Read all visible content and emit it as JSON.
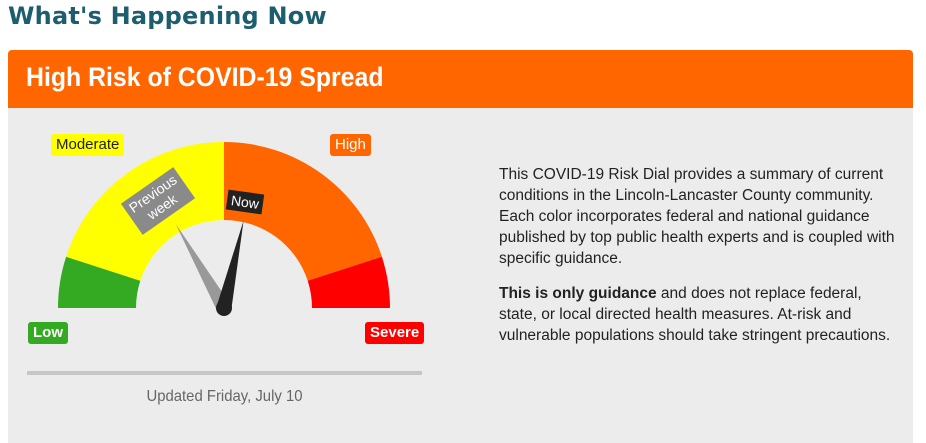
{
  "page": {
    "heading": "What's Happening Now"
  },
  "card": {
    "title": "High Risk of COVID-19 Spread"
  },
  "dial": {
    "levels": {
      "low": "Low",
      "moderate": "Moderate",
      "high": "High",
      "severe": "Severe"
    },
    "colors": {
      "low": "#33aa22",
      "moderate": "#ffff00",
      "high": "#ff6600",
      "severe": "#ff0000",
      "now_needle": "#222222",
      "previous_needle": "#999999"
    },
    "needles": {
      "previous_label_line1": "Previous",
      "previous_label_line2": "week",
      "now_label": "Now"
    },
    "updated_text": "Updated Friday, July 10"
  },
  "description": {
    "paragraph1": "This COVID-19 Risk Dial provides a summary of current conditions in the Lincoln-Lancaster County community. Each color incorporates federal and national guidance published by top public health experts and is coupled with specific guidance.",
    "paragraph2_bold": "This is only guidance",
    "paragraph2_rest": " and does not replace federal, state, or local directed health measures. At-risk and vulnerable populations should take stringent precautions."
  }
}
